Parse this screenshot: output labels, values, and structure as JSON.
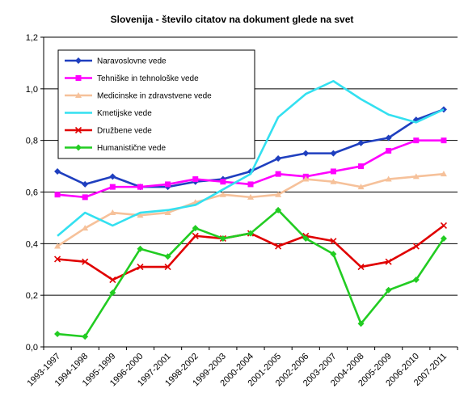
{
  "chart_data": {
    "type": "line",
    "title": "Slovenija - število citatov na dokument glede na svet",
    "xlabel": "",
    "ylabel": "",
    "ylim": [
      0,
      1.2
    ],
    "y_ticks": [
      "0,0",
      "0,2",
      "0,4",
      "0,6",
      "0,8",
      "1,0",
      "1,2"
    ],
    "grid": "horizontal",
    "legend_position": "top-left",
    "categories": [
      "1993-1997",
      "1994-1998",
      "1995-1999",
      "1996-2000",
      "1997-2001",
      "1998-2002",
      "1999-2003",
      "2000-2004",
      "2001-2005",
      "2002-2006",
      "2003-2007",
      "2004-2008",
      "2005-2009",
      "2006-2010",
      "2007-2011"
    ],
    "series": [
      {
        "name": "Naravoslovne vede",
        "color": "#1f3fbf",
        "marker": "diamond",
        "values": [
          0.68,
          0.63,
          0.66,
          0.62,
          0.62,
          0.64,
          0.65,
          0.68,
          0.73,
          0.75,
          0.75,
          0.79,
          0.81,
          0.88,
          0.92
        ]
      },
      {
        "name": "Tehniške in tehnološke vede",
        "color": "#ff00ff",
        "marker": "square",
        "values": [
          0.59,
          0.58,
          0.62,
          0.62,
          0.63,
          0.65,
          0.64,
          0.63,
          0.67,
          0.66,
          0.68,
          0.7,
          0.76,
          0.8,
          0.8
        ]
      },
      {
        "name": "Medicinske in zdravstvene vede",
        "color": "#f6c19a",
        "marker": "triangle",
        "values": [
          0.39,
          0.46,
          0.52,
          0.51,
          0.52,
          0.56,
          0.59,
          0.58,
          0.59,
          0.65,
          0.64,
          0.62,
          0.65,
          0.66,
          0.67
        ]
      },
      {
        "name": "Kmetijske vede",
        "color": "#33e0f0",
        "marker": "none",
        "values": [
          0.43,
          0.52,
          0.47,
          0.52,
          0.53,
          0.55,
          0.61,
          0.67,
          0.89,
          0.98,
          1.03,
          0.96,
          0.9,
          0.87,
          0.92
        ]
      },
      {
        "name": "Družbene vede",
        "color": "#e00000",
        "marker": "x",
        "values": [
          0.34,
          0.33,
          0.26,
          0.31,
          0.31,
          0.43,
          0.42,
          0.44,
          0.39,
          0.43,
          0.41,
          0.31,
          0.33,
          0.39,
          0.47
        ]
      },
      {
        "name": "Humanistične vede",
        "color": "#22cc22",
        "marker": "diamond",
        "values": [
          0.05,
          0.04,
          0.21,
          0.38,
          0.35,
          0.46,
          0.42,
          0.44,
          0.53,
          0.42,
          0.36,
          0.09,
          0.22,
          0.26,
          0.42
        ]
      }
    ]
  }
}
